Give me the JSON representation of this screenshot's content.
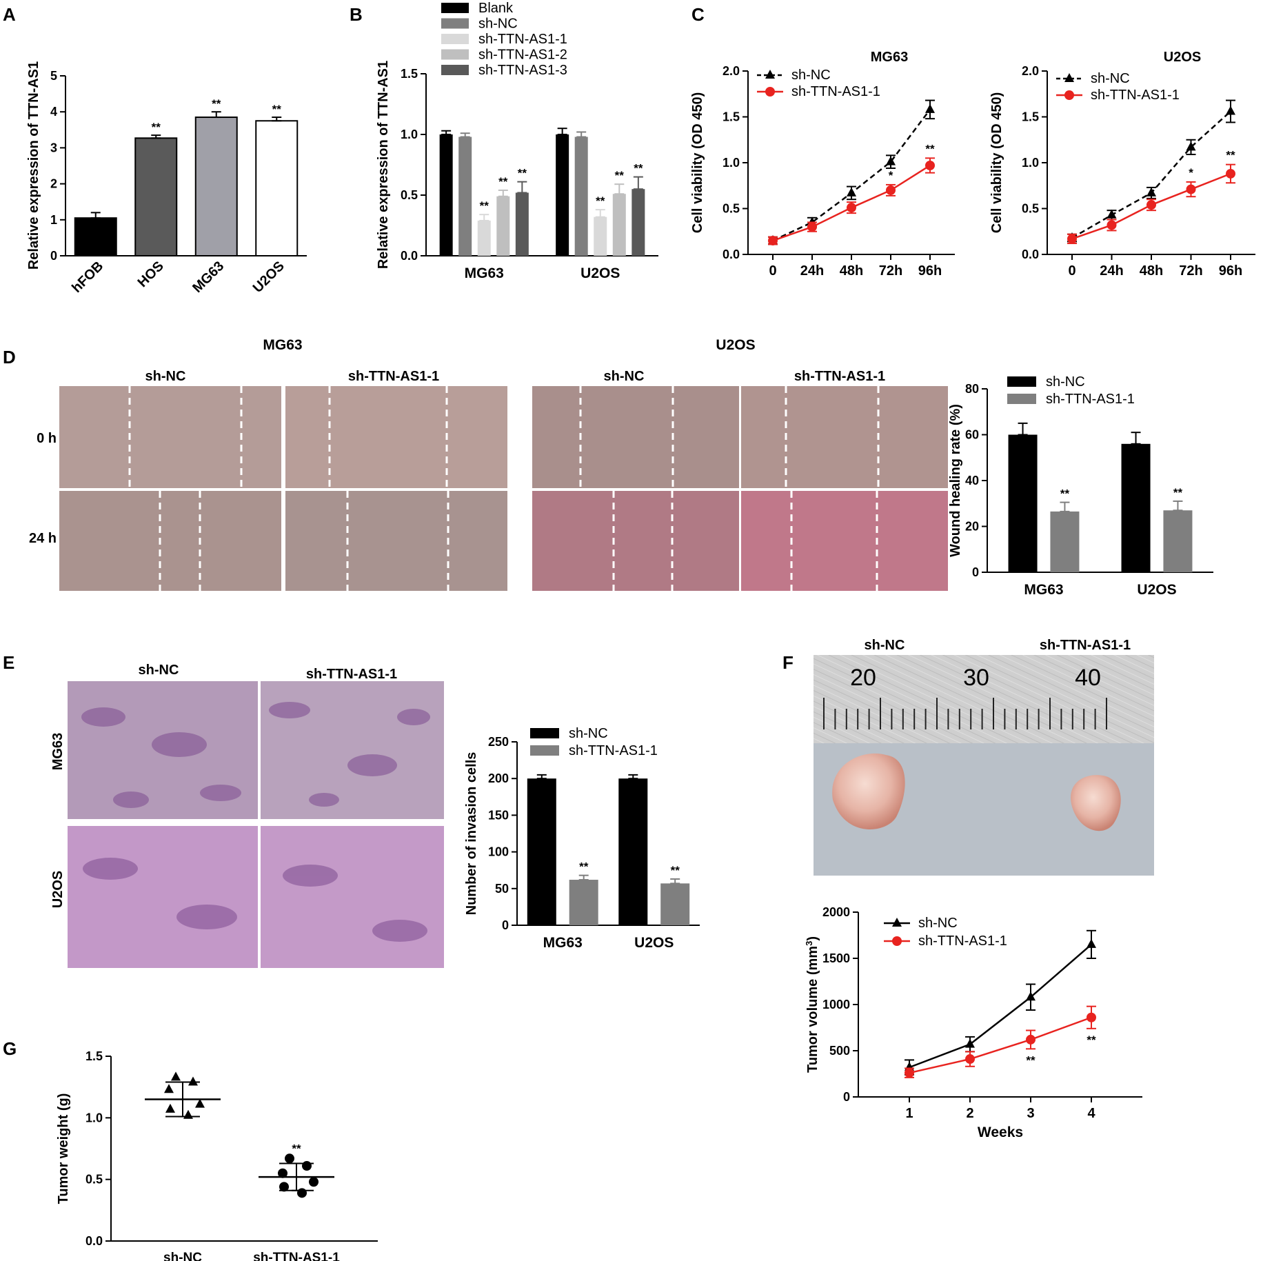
{
  "panels": {
    "A": {
      "letter": "A"
    },
    "B": {
      "letter": "B"
    },
    "C": {
      "letter": "C"
    },
    "D": {
      "letter": "D",
      "group1": "MG63",
      "group2": "U2OS",
      "col_left": "sh-NC",
      "col_right": "sh-TTN-AS1-1",
      "row_top": "0 h",
      "row_bottom": "24 h"
    },
    "E": {
      "letter": "E",
      "col_left": "sh-NC",
      "col_right": "sh-TTN-AS1-1",
      "row_top": "MG63",
      "row_bottom": "U2OS"
    },
    "F": {
      "letter": "F",
      "photo_left": "sh-NC",
      "photo_right": "sh-TTN-AS1-1",
      "ruler_marks": [
        "20",
        "30",
        "40"
      ]
    },
    "G": {
      "letter": "G"
    }
  },
  "colors": {
    "black": "#000000",
    "red": "#e8231f",
    "grey_mid": "#7f7f7f",
    "grey_light": "#d9d9d9",
    "grey_dark": "#595959"
  },
  "chart_data": [
    {
      "id": "A",
      "type": "bar",
      "categories": [
        "hFOB",
        "HOS",
        "MG63",
        "U2OS"
      ],
      "values": [
        1.05,
        3.27,
        3.85,
        3.75
      ],
      "errors": [
        0.15,
        0.08,
        0.15,
        0.1
      ],
      "fills": [
        "#000000",
        "#5a5a5a",
        "#a0a0a8",
        "#ffffff"
      ],
      "significance": [
        "",
        "**",
        "**",
        "**"
      ],
      "ylabel": "Relative expression of TTN-AS1",
      "ylim": [
        0,
        5
      ],
      "yticks": [
        "0",
        "1",
        "2",
        "3",
        "4",
        "5"
      ]
    },
    {
      "id": "B",
      "type": "bar",
      "categories": [
        "MG63",
        "U2OS"
      ],
      "series": [
        {
          "name": "Blank",
          "color": "#000000",
          "values": [
            1.0,
            1.0
          ],
          "errors": [
            0.03,
            0.05
          ],
          "significance": [
            "",
            ""
          ]
        },
        {
          "name": "sh-NC",
          "color": "#7f7f7f",
          "values": [
            0.98,
            0.98
          ],
          "errors": [
            0.03,
            0.04
          ],
          "significance": [
            "",
            ""
          ]
        },
        {
          "name": "sh-TTN-AS1-1",
          "color": "#d9d9d9",
          "values": [
            0.29,
            0.32
          ],
          "errors": [
            0.05,
            0.06
          ],
          "significance": [
            "**",
            "**"
          ]
        },
        {
          "name": "sh-TTN-AS1-2",
          "color": "#bfbfbf",
          "values": [
            0.49,
            0.51
          ],
          "errors": [
            0.05,
            0.08
          ],
          "significance": [
            "**",
            "**"
          ]
        },
        {
          "name": "sh-TTN-AS1-3",
          "color": "#595959",
          "values": [
            0.52,
            0.55
          ],
          "errors": [
            0.09,
            0.1
          ],
          "significance": [
            "**",
            "**"
          ]
        }
      ],
      "ylabel": "Relative expression of TTN-AS1",
      "ylim": [
        0,
        1.5
      ],
      "yticks": [
        "0.0",
        "0.5",
        "1.0",
        "1.5"
      ]
    },
    {
      "id": "C1",
      "type": "line",
      "title": "MG63",
      "x": [
        "0",
        "24h",
        "48h",
        "72h",
        "96h"
      ],
      "series": [
        {
          "name": "sh-NC",
          "color": "#000000",
          "dashed": true,
          "marker": "triangle",
          "values": [
            0.15,
            0.35,
            0.67,
            1.01,
            1.58
          ],
          "errors": [
            0.04,
            0.05,
            0.07,
            0.07,
            0.1
          ],
          "significance": [
            "",
            "",
            "",
            "",
            ""
          ]
        },
        {
          "name": "sh-TTN-AS1-1",
          "color": "#e8231f",
          "dashed": false,
          "marker": "circle",
          "values": [
            0.15,
            0.3,
            0.51,
            0.7,
            0.97
          ],
          "errors": [
            0.04,
            0.05,
            0.06,
            0.06,
            0.08
          ],
          "significance": [
            "",
            "",
            "",
            "*",
            "**"
          ]
        }
      ],
      "ylabel": "Cell viability (OD 450)",
      "ylim": [
        0,
        2.0
      ],
      "yticks": [
        "0.0",
        "0.5",
        "1.0",
        "1.5",
        "2.0"
      ]
    },
    {
      "id": "C2",
      "type": "line",
      "title": "U2OS",
      "x": [
        "0",
        "24h",
        "48h",
        "72h",
        "96h"
      ],
      "series": [
        {
          "name": "sh-NC",
          "color": "#000000",
          "dashed": true,
          "marker": "triangle",
          "values": [
            0.18,
            0.43,
            0.67,
            1.17,
            1.56
          ],
          "errors": [
            0.04,
            0.05,
            0.06,
            0.08,
            0.12
          ],
          "significance": [
            "",
            "",
            "",
            "",
            ""
          ]
        },
        {
          "name": "sh-TTN-AS1-1",
          "color": "#e8231f",
          "dashed": false,
          "marker": "circle",
          "values": [
            0.17,
            0.32,
            0.54,
            0.71,
            0.88
          ],
          "errors": [
            0.05,
            0.06,
            0.06,
            0.08,
            0.1
          ],
          "significance": [
            "",
            "",
            "",
            "*",
            "**"
          ]
        }
      ],
      "ylabel": "Cell viability (OD 450)",
      "ylim": [
        0,
        2.0
      ],
      "yticks": [
        "0.0",
        "0.5",
        "1.0",
        "1.5",
        "2.0"
      ]
    },
    {
      "id": "D",
      "type": "bar",
      "categories": [
        "MG63",
        "U2OS"
      ],
      "series": [
        {
          "name": "sh-NC",
          "color": "#000000",
          "values": [
            60,
            56
          ],
          "errors": [
            5,
            5
          ],
          "significance": [
            "",
            ""
          ]
        },
        {
          "name": "sh-TTN-AS1-1",
          "color": "#7f7f7f",
          "values": [
            26.5,
            27
          ],
          "errors": [
            4,
            4
          ],
          "significance": [
            "**",
            "**"
          ]
        }
      ],
      "ylabel": "Wound healing rate (%)",
      "ylim": [
        0,
        80
      ],
      "yticks": [
        "0",
        "20",
        "40",
        "60",
        "80"
      ]
    },
    {
      "id": "E",
      "type": "bar",
      "categories": [
        "MG63",
        "U2OS"
      ],
      "series": [
        {
          "name": "sh-NC",
          "color": "#000000",
          "values": [
            200,
            200
          ],
          "errors": [
            5,
            5
          ],
          "significance": [
            "",
            ""
          ]
        },
        {
          "name": "sh-TTN-AS1-1",
          "color": "#7f7f7f",
          "values": [
            62,
            57
          ],
          "errors": [
            6,
            6
          ],
          "significance": [
            "**",
            "**"
          ]
        }
      ],
      "ylabel": "Number of invasion cells",
      "ylim": [
        0,
        250
      ],
      "yticks": [
        "0",
        "50",
        "100",
        "150",
        "200",
        "250"
      ]
    },
    {
      "id": "F",
      "type": "line",
      "x": [
        "1",
        "2",
        "3",
        "4"
      ],
      "series": [
        {
          "name": "sh-NC",
          "color": "#000000",
          "dashed": false,
          "marker": "triangle",
          "values": [
            320,
            570,
            1080,
            1650
          ],
          "errors": [
            80,
            80,
            140,
            150
          ],
          "significance": [
            "",
            "",
            "",
            ""
          ]
        },
        {
          "name": "sh-TTN-AS1-1",
          "color": "#e8231f",
          "dashed": false,
          "marker": "circle",
          "values": [
            260,
            410,
            620,
            860
          ],
          "errors": [
            50,
            80,
            100,
            120
          ],
          "significance": [
            "",
            "",
            "**",
            "**"
          ]
        }
      ],
      "xlabel": "Weeks",
      "ylabel": "Tumor volume (mm",
      "ylabel_sup": "3",
      "ylabel_end": ")",
      "ylim": [
        0,
        2000
      ],
      "yticks": [
        "0",
        "500",
        "1000",
        "1500",
        "2000"
      ]
    },
    {
      "id": "G",
      "type": "scatter",
      "categories": [
        "sh-NC",
        "sh-TTN-AS1-1"
      ],
      "groups": [
        {
          "name": "sh-NC",
          "marker": "triangle",
          "points": [
            1.33,
            1.29,
            1.23,
            1.11,
            1.07,
            1.02
          ],
          "mean": 1.15,
          "sd": 0.14,
          "significance": ""
        },
        {
          "name": "sh-TTN-AS1-1",
          "marker": "circle",
          "points": [
            0.67,
            0.61,
            0.55,
            0.48,
            0.44,
            0.39
          ],
          "mean": 0.52,
          "sd": 0.11,
          "significance": "**"
        }
      ],
      "ylabel": "Tumor weight (g)",
      "ylim": [
        0,
        1.5
      ],
      "yticks": [
        "0.0",
        "0.5",
        "1.0",
        "1.5"
      ]
    }
  ]
}
